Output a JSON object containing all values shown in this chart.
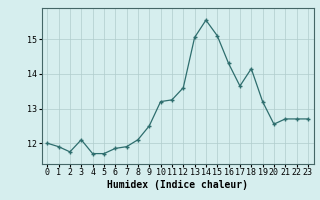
{
  "x": [
    0,
    1,
    2,
    3,
    4,
    5,
    6,
    7,
    8,
    9,
    10,
    11,
    12,
    13,
    14,
    15,
    16,
    17,
    18,
    19,
    20,
    21,
    22,
    23
  ],
  "y": [
    12.0,
    11.9,
    11.75,
    12.1,
    11.7,
    11.7,
    11.85,
    11.9,
    12.1,
    12.5,
    13.2,
    13.25,
    13.6,
    15.05,
    15.55,
    15.1,
    14.3,
    13.65,
    14.15,
    13.2,
    12.55,
    12.7,
    12.7,
    12.7
  ],
  "line_color": "#2e6e6e",
  "marker": "+",
  "marker_size": 4,
  "bg_color": "#d6eeee",
  "grid_color": "#b0cccc",
  "xlabel": "Humidex (Indice chaleur)",
  "xlabel_fontsize": 7,
  "tick_fontsize": 6,
  "ylabel_ticks": [
    12,
    13,
    14,
    15
  ],
  "ylim": [
    11.4,
    15.9
  ],
  "xlim": [
    -0.5,
    23.5
  ]
}
